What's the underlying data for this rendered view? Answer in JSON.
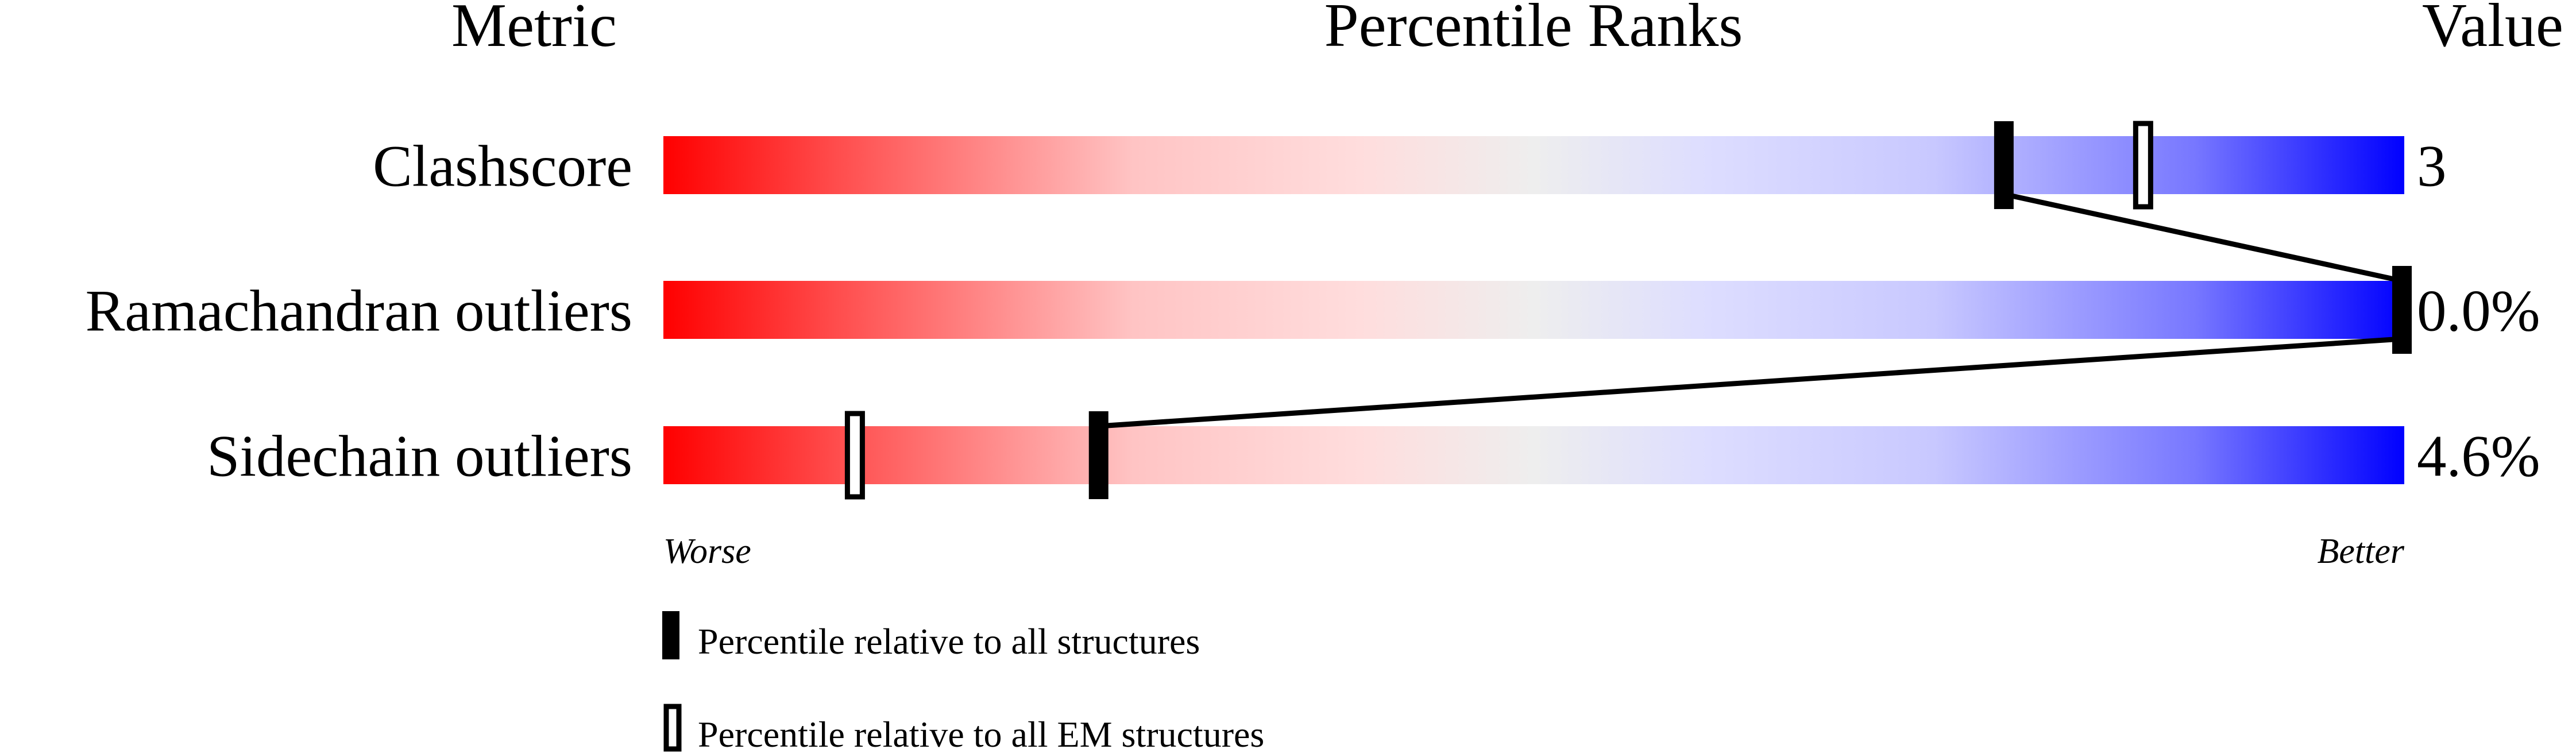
{
  "chart_data": {
    "type": "percentile-slider",
    "headers": {
      "metric": "Metric",
      "ranks": "Percentile Ranks",
      "value": "Value"
    },
    "xlim": [
      0,
      100
    ],
    "rows": [
      {
        "metric": "Clashscore",
        "value": "3",
        "percentile_all": 77,
        "percentile_em": 85
      },
      {
        "metric": "Ramachandran outliers",
        "value": "0.0%",
        "percentile_all": 100,
        "percentile_em": 100
      },
      {
        "metric": "Sidechain outliers",
        "value": "4.6%",
        "percentile_all": 25,
        "percentile_em": 11
      }
    ],
    "axis": {
      "worse": "Worse",
      "better": "Better"
    },
    "legend": {
      "all": "Percentile relative to all structures",
      "em": "Percentile relative to all EM structures"
    },
    "colors": {
      "worse": "#ff0000",
      "middle": "#eeeeee",
      "better": "#0000ff",
      "marker": "#000000"
    }
  }
}
